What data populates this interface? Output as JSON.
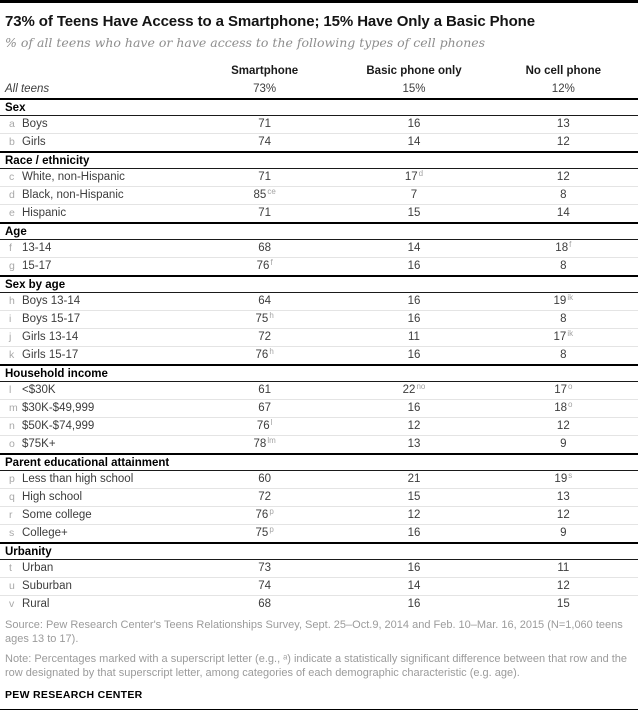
{
  "colors": {
    "rule_black": "#000000",
    "title_text": "#141414",
    "subtitle_gray": "#8d8d8d",
    "body_text": "#3d3d3d",
    "letter_gray": "#a8a8a8",
    "superscript_gray": "#a3a3a3",
    "row_divider": "#e4e4e4",
    "footer_gray": "#9b9b9b"
  },
  "chart_data": {
    "type": "table",
    "title": "73% of Teens Have Access to a Smartphone; 15% Have Only a Basic Phone",
    "subtitle": "% of all teens who have or have access to the following  types of cell phones",
    "columns": [
      "Smartphone",
      "Basic phone only",
      "No cell phone"
    ],
    "all_teens": {
      "label": "All teens",
      "values": [
        {
          "v": "73%"
        },
        {
          "v": "15%"
        },
        {
          "v": "12%"
        }
      ]
    },
    "sections": [
      {
        "header": "Sex",
        "rows": [
          {
            "letter": "a",
            "label": "Boys",
            "values": [
              {
                "v": "71"
              },
              {
                "v": "16"
              },
              {
                "v": "13"
              }
            ]
          },
          {
            "letter": "b",
            "label": "Girls",
            "values": [
              {
                "v": "74"
              },
              {
                "v": "14"
              },
              {
                "v": "12"
              }
            ]
          }
        ]
      },
      {
        "header": "Race / ethnicity",
        "rows": [
          {
            "letter": "c",
            "label": "White, non-Hispanic",
            "values": [
              {
                "v": "71"
              },
              {
                "v": "17",
                "sup": "d"
              },
              {
                "v": "12"
              }
            ]
          },
          {
            "letter": "d",
            "label": "Black, non-Hispanic",
            "values": [
              {
                "v": "85",
                "sup": "ce"
              },
              {
                "v": "7"
              },
              {
                "v": "8"
              }
            ]
          },
          {
            "letter": "e",
            "label": "Hispanic",
            "values": [
              {
                "v": "71"
              },
              {
                "v": "15"
              },
              {
                "v": "14"
              }
            ]
          }
        ]
      },
      {
        "header": "Age",
        "rows": [
          {
            "letter": "f",
            "label": "13-14",
            "values": [
              {
                "v": "68"
              },
              {
                "v": "14"
              },
              {
                "v": "18",
                "sup": "f"
              }
            ]
          },
          {
            "letter": "g",
            "label": "15-17",
            "values": [
              {
                "v": "76",
                "sup": "f"
              },
              {
                "v": "16"
              },
              {
                "v": "8"
              }
            ]
          }
        ]
      },
      {
        "header": "Sex by age",
        "rows": [
          {
            "letter": "h",
            "label": "Boys 13-14",
            "values": [
              {
                "v": "64"
              },
              {
                "v": "16"
              },
              {
                "v": "19",
                "sup": "ik"
              }
            ]
          },
          {
            "letter": "i",
            "label": "Boys 15-17",
            "values": [
              {
                "v": "75",
                "sup": "h"
              },
              {
                "v": "16"
              },
              {
                "v": "8"
              }
            ]
          },
          {
            "letter": "j",
            "label": "Girls 13-14",
            "values": [
              {
                "v": "72"
              },
              {
                "v": "11"
              },
              {
                "v": "17",
                "sup": "ik"
              }
            ]
          },
          {
            "letter": "k",
            "label": "Girls 15-17",
            "values": [
              {
                "v": "76",
                "sup": "h"
              },
              {
                "v": "16"
              },
              {
                "v": "8"
              }
            ]
          }
        ]
      },
      {
        "header": "Household income",
        "rows": [
          {
            "letter": "l",
            "label": "<$30K",
            "values": [
              {
                "v": "61"
              },
              {
                "v": "22",
                "sup": "no"
              },
              {
                "v": "17",
                "sup": "o"
              }
            ]
          },
          {
            "letter": "m",
            "label": "$30K-$49,999",
            "values": [
              {
                "v": "67"
              },
              {
                "v": "16"
              },
              {
                "v": "18",
                "sup": "o"
              }
            ]
          },
          {
            "letter": "n",
            "label": "$50K-$74,999",
            "values": [
              {
                "v": "76",
                "sup": "l"
              },
              {
                "v": "12"
              },
              {
                "v": "12"
              }
            ]
          },
          {
            "letter": "o",
            "label": "$75K+",
            "values": [
              {
                "v": "78",
                "sup": "lm"
              },
              {
                "v": "13"
              },
              {
                "v": "9"
              }
            ]
          }
        ]
      },
      {
        "header": "Parent educational attainment",
        "rows": [
          {
            "letter": "p",
            "label": "Less than high school",
            "values": [
              {
                "v": "60"
              },
              {
                "v": "21"
              },
              {
                "v": "19",
                "sup": "s"
              }
            ]
          },
          {
            "letter": "q",
            "label": "High school",
            "values": [
              {
                "v": "72"
              },
              {
                "v": "15"
              },
              {
                "v": "13"
              }
            ]
          },
          {
            "letter": "r",
            "label": "Some college",
            "values": [
              {
                "v": "76",
                "sup": "p"
              },
              {
                "v": "12"
              },
              {
                "v": "12"
              }
            ]
          },
          {
            "letter": "s",
            "label": "College+",
            "values": [
              {
                "v": "75",
                "sup": "p"
              },
              {
                "v": "16"
              },
              {
                "v": "9"
              }
            ]
          }
        ]
      },
      {
        "header": "Urbanity",
        "rows": [
          {
            "letter": "t",
            "label": "Urban",
            "values": [
              {
                "v": "73"
              },
              {
                "v": "16"
              },
              {
                "v": "11"
              }
            ]
          },
          {
            "letter": "u",
            "label": "Suburban",
            "values": [
              {
                "v": "74"
              },
              {
                "v": "14"
              },
              {
                "v": "12"
              }
            ]
          },
          {
            "letter": "v",
            "label": "Rural",
            "values": [
              {
                "v": "68"
              },
              {
                "v": "16"
              },
              {
                "v": "15"
              }
            ]
          }
        ]
      }
    ]
  },
  "footer": {
    "source": "Source: Pew Research Center's Teens Relationships Survey, Sept. 25–Oct.9, 2014 and Feb. 10–Mar. 16, 2015 (N=1,060 teens ages 13 to 17).",
    "note": "Note: Percentages marked with a superscript letter (e.g., ᵃ) indicate a statistically significant difference between that row and the row designated by that superscript letter, among categories of each demographic characteristic (e.g. age).",
    "brand": "PEW RESEARCH CENTER"
  }
}
